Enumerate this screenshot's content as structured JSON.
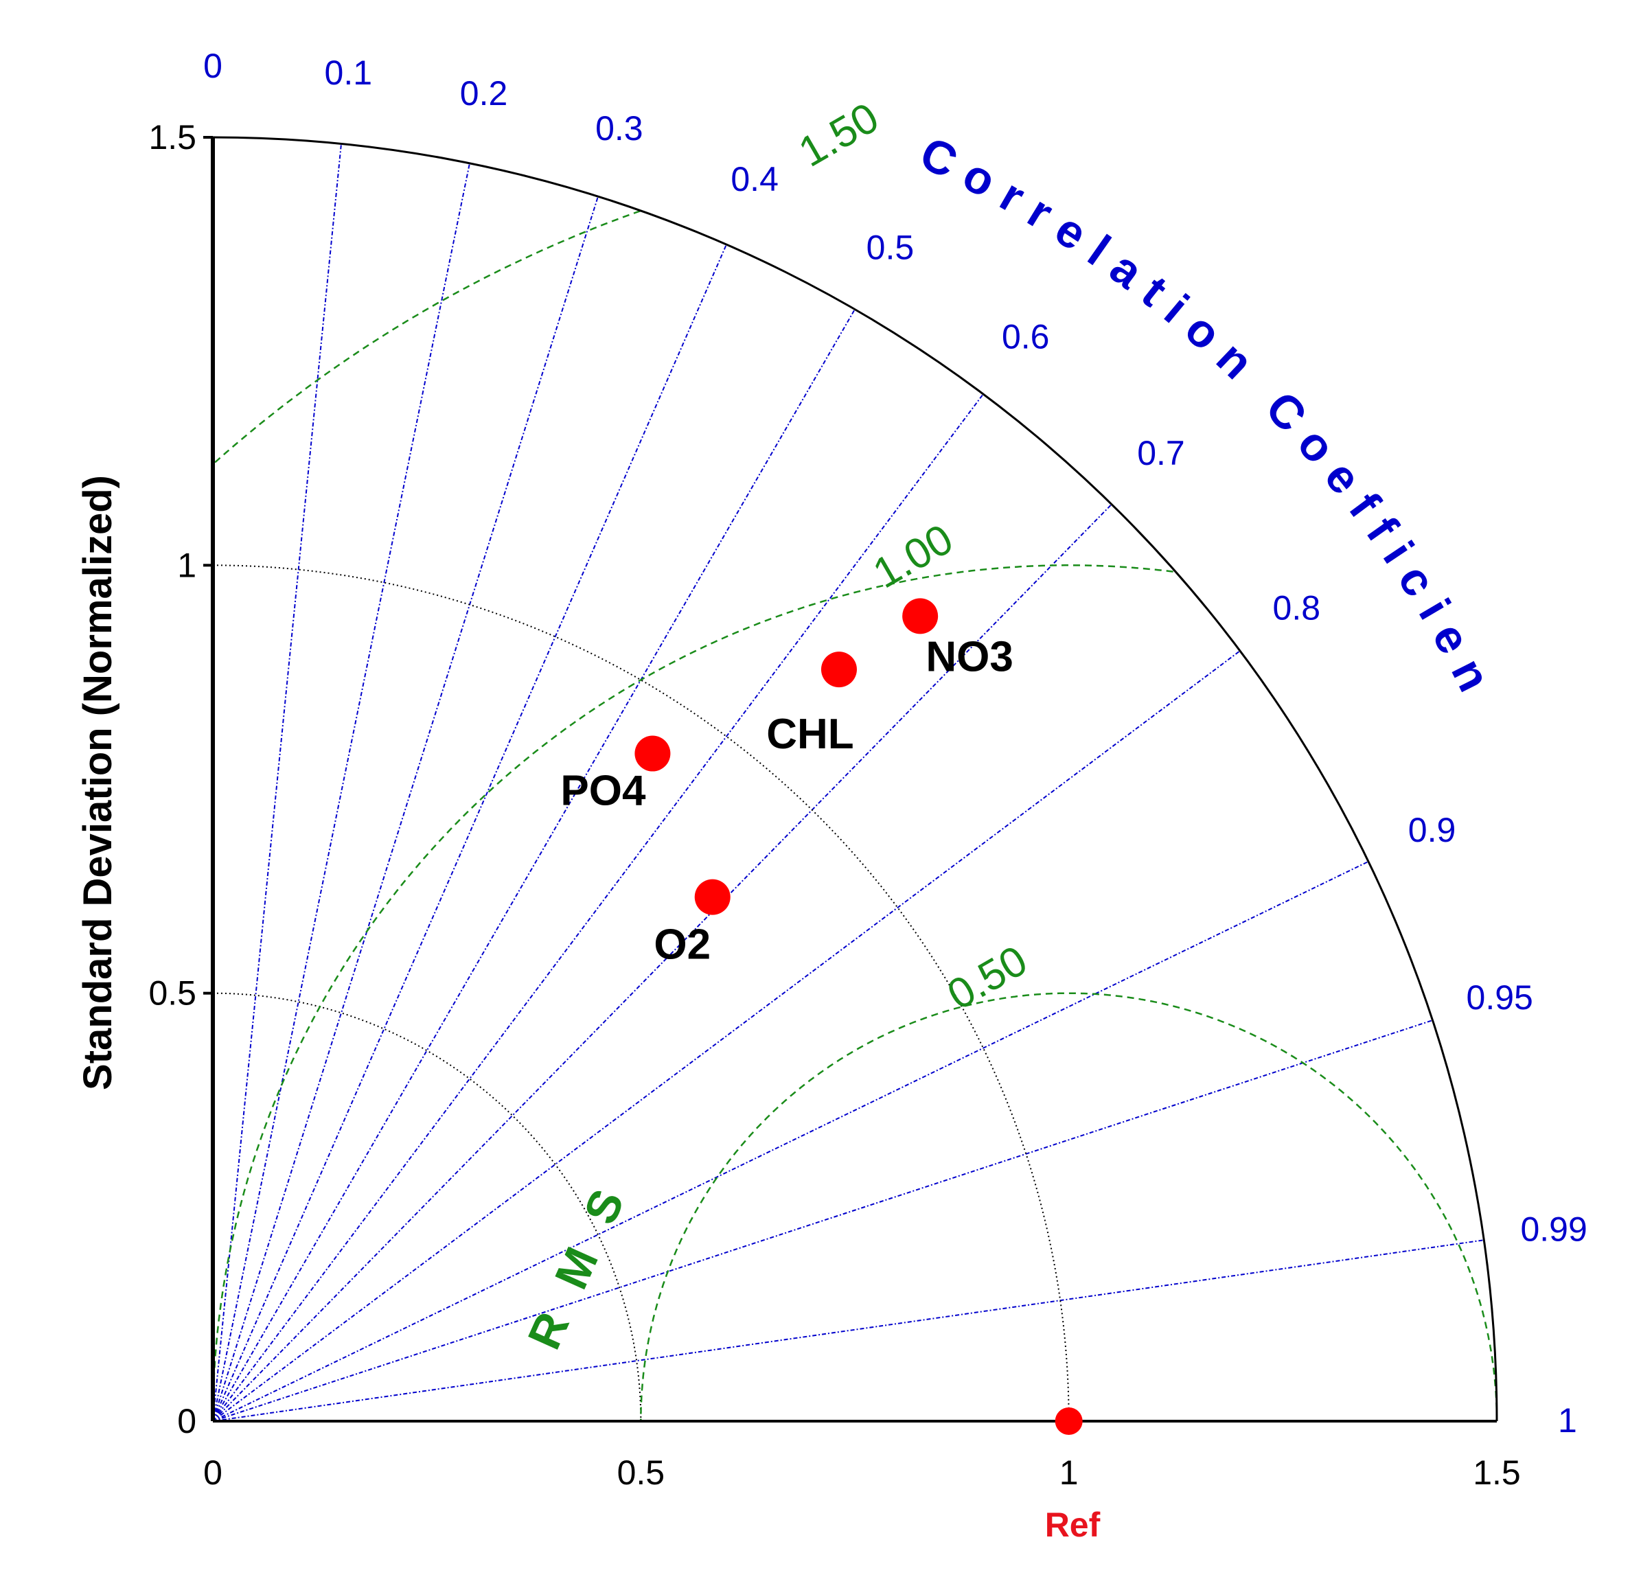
{
  "chart_data": {
    "type": "taylor",
    "title": "",
    "ylabel": "Standard Deviation (Normalized)",
    "correlation_label": "Correlation Coefficient",
    "rmse_label": "R M S E",
    "ref_label": "Ref",
    "sd_max": 1.5,
    "sd_ticks": [
      {
        "value": 0,
        "label": "0"
      },
      {
        "value": 0.5,
        "label": "0.5"
      },
      {
        "value": 1,
        "label": "1"
      },
      {
        "value": 1.5,
        "label": "1.5"
      }
    ],
    "sd_arcs": [
      0.5,
      1
    ],
    "correlation_ticks": [
      {
        "value": 0,
        "label": "0"
      },
      {
        "value": 0.1,
        "label": "0.1"
      },
      {
        "value": 0.2,
        "label": "0.2"
      },
      {
        "value": 0.3,
        "label": "0.3"
      },
      {
        "value": 0.4,
        "label": "0.4"
      },
      {
        "value": 0.5,
        "label": "0.5"
      },
      {
        "value": 0.6,
        "label": "0.6"
      },
      {
        "value": 0.7,
        "label": "0.7"
      },
      {
        "value": 0.8,
        "label": "0.8"
      },
      {
        "value": 0.9,
        "label": "0.9"
      },
      {
        "value": 0.95,
        "label": "0.95"
      },
      {
        "value": 0.99,
        "label": "0.99"
      },
      {
        "value": 1,
        "label": "1"
      }
    ],
    "rmse_contours": [
      {
        "value": 0.5,
        "label": "0.50"
      },
      {
        "value": 1.0,
        "label": "1.00"
      },
      {
        "value": 1.5,
        "label": "1.50"
      }
    ],
    "reference": {
      "std": 1.0,
      "correlation": 1.0
    },
    "points": [
      {
        "name": "NO3",
        "std": 1.252,
        "correlation": 0.66
      },
      {
        "name": "CHL",
        "std": 1.143,
        "correlation": 0.64
      },
      {
        "name": "PO4",
        "std": 0.934,
        "correlation": 0.55
      },
      {
        "name": "O2",
        "std": 0.846,
        "correlation": 0.69
      }
    ],
    "colors": {
      "correlation": "#0000cc",
      "rmse": "#1a8c1a",
      "points": "#ff0000",
      "sd_arcs": "#000000",
      "ref": "#e8141e"
    }
  }
}
